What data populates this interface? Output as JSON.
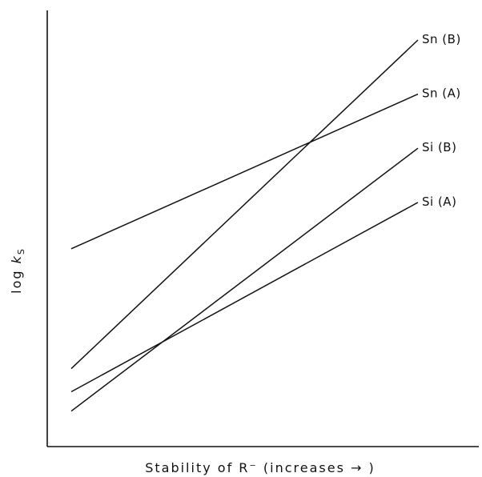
{
  "chart_data": {
    "type": "line",
    "title": "",
    "xlabel": "Stability of R⁻ (increases → )",
    "ylabel": {
      "prefix": "log ",
      "var": "k",
      "sub": "S"
    },
    "xlim": [
      0,
      1
    ],
    "ylim": [
      0,
      1
    ],
    "grid": false,
    "legend": "none",
    "series": [
      {
        "name": "Sn (B)",
        "x": [
          0,
          1
        ],
        "y": [
          0.15,
          1.0
        ]
      },
      {
        "name": "Sn (A)",
        "x": [
          0,
          1
        ],
        "y": [
          0.46,
          0.86
        ]
      },
      {
        "name": "Si (B)",
        "x": [
          0,
          1
        ],
        "y": [
          0.04,
          0.72
        ]
      },
      {
        "name": "Si (A)",
        "x": [
          0,
          1
        ],
        "y": [
          0.09,
          0.58
        ]
      }
    ]
  }
}
